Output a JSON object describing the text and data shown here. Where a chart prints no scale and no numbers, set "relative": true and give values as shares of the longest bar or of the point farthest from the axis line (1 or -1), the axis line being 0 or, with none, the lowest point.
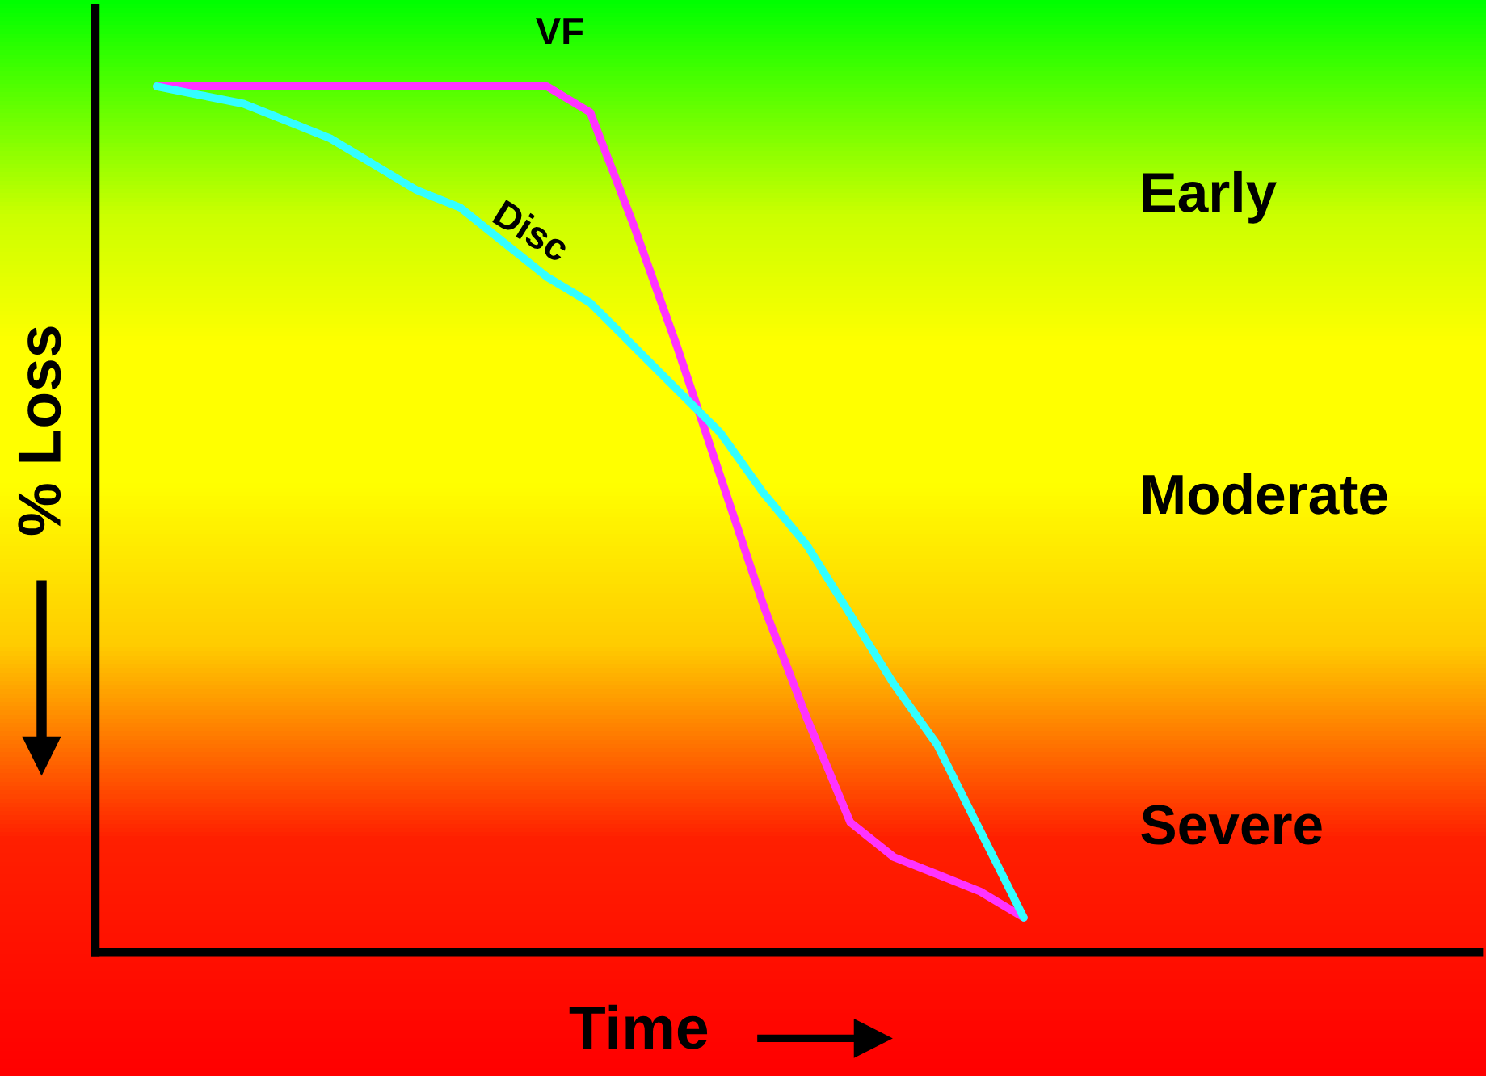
{
  "chart_data": {
    "type": "line",
    "relative": true,
    "xlabel": "Time",
    "ylabel": "% Loss",
    "categories": [
      null,
      null,
      null,
      null,
      null,
      null,
      null,
      null,
      null,
      null,
      null,
      null,
      null,
      null,
      null,
      null,
      null,
      null,
      null,
      null,
      null
    ],
    "series": [
      {
        "name": "VF",
        "color": "#ff33ff",
        "values": [
          1.0,
          1.0,
          1.0,
          1.0,
          1.0,
          1.0,
          1.0,
          1.0,
          1.0,
          1.0,
          0.97,
          0.84,
          0.7,
          0.55,
          0.4,
          0.27,
          0.15,
          0.11,
          0.09,
          0.07,
          0.04
        ]
      },
      {
        "name": "Disc",
        "color": "#33ffff",
        "values": [
          1.0,
          0.99,
          0.98,
          0.96,
          0.94,
          0.91,
          0.88,
          0.86,
          0.82,
          0.78,
          0.75,
          0.7,
          0.65,
          0.6,
          0.53,
          0.47,
          0.39,
          0.31,
          0.24,
          0.14,
          0.04
        ]
      }
    ],
    "annotations": [
      "Early",
      "Moderate",
      "Severe"
    ],
    "grid": false,
    "legend": false
  }
}
